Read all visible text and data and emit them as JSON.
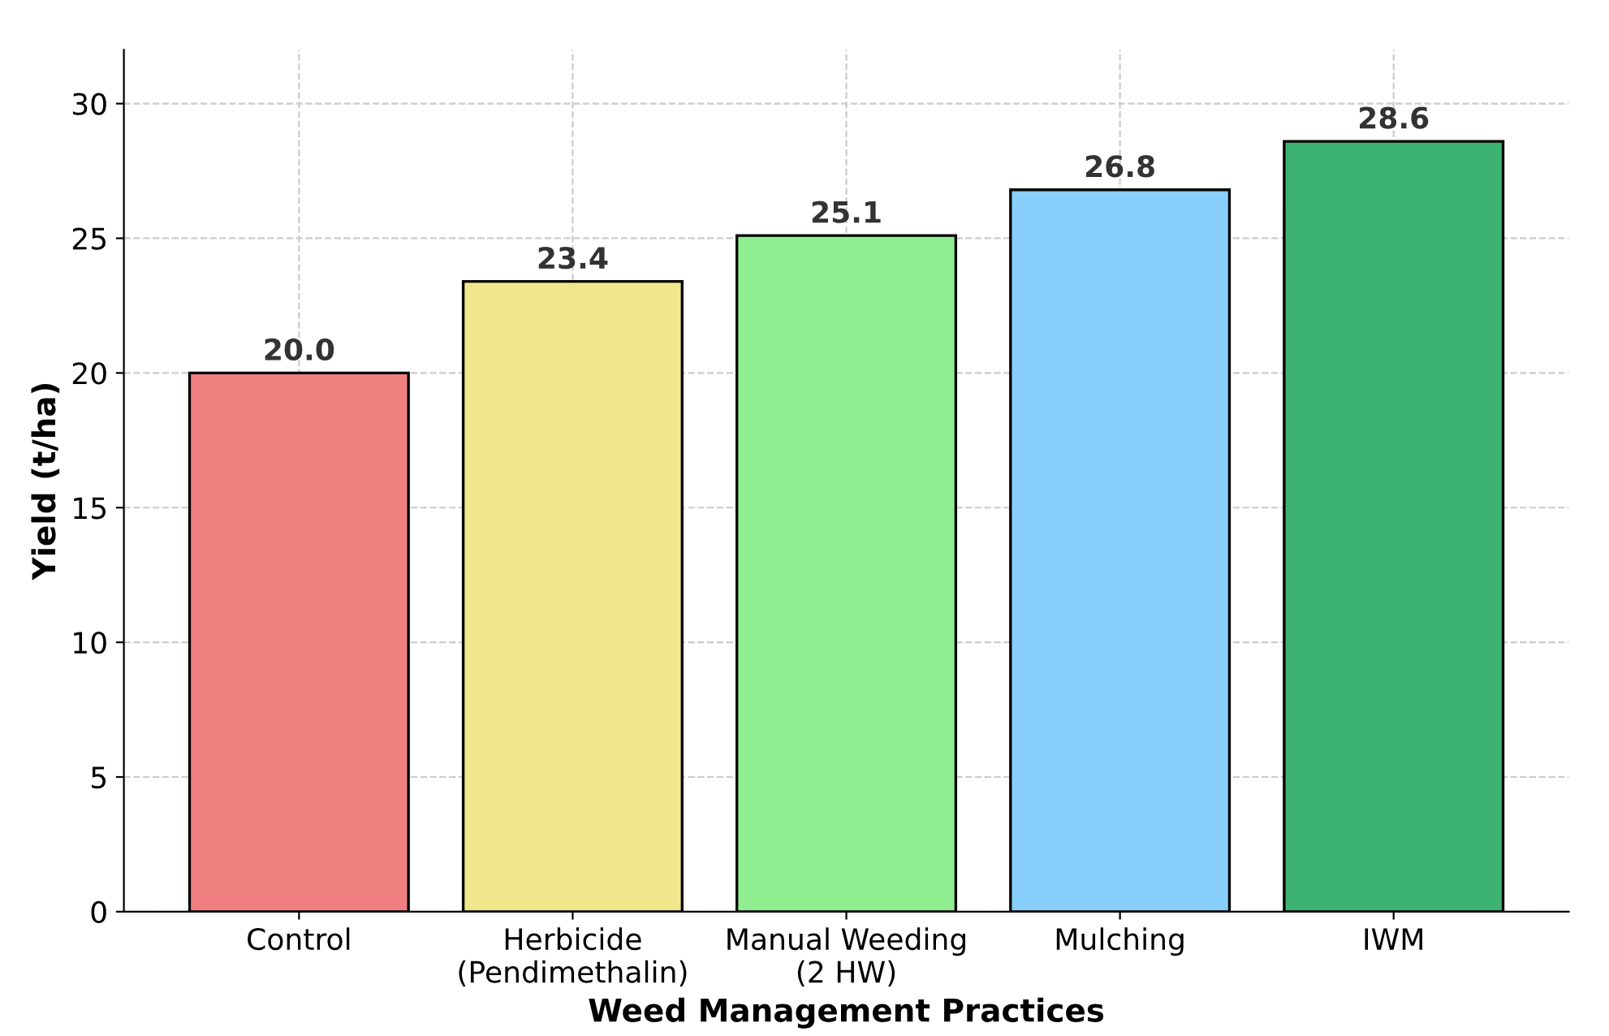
{
  "chart_data": {
    "type": "bar",
    "xlabel": "Weed Management Practices",
    "ylabel": "Yield (t/ha)",
    "categories": [
      "Control",
      "Herbicide\n(Pendimethalin)",
      "Manual Weeding\n(2 HW)",
      "Mulching",
      "IWM"
    ],
    "values": [
      20.0,
      23.4,
      25.1,
      26.8,
      28.6
    ],
    "colors": [
      "#f08080",
      "#f0e68c",
      "#90ee90",
      "#87cefa",
      "#3cb371"
    ],
    "ylim": [
      0,
      32
    ],
    "yticks": [
      0,
      5,
      10,
      15,
      20,
      25,
      30
    ],
    "value_labels": [
      "20.0",
      "23.4",
      "25.1",
      "26.8",
      "28.6"
    ],
    "grid": true
  }
}
